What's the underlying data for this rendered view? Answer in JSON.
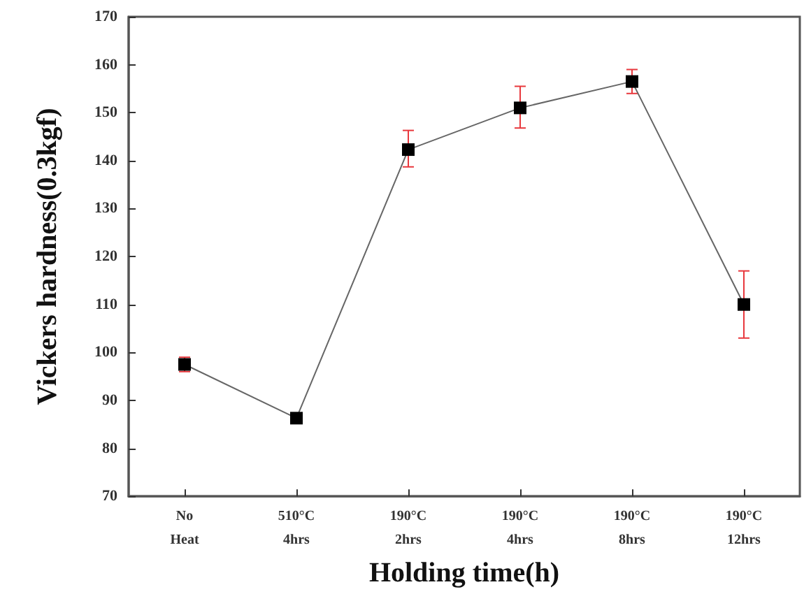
{
  "chart_data": {
    "type": "line",
    "xlabel": "Holding time(h)",
    "ylabel": "Vickers hardness(0.3kgf)",
    "categories": [
      "No\nHeat",
      "510°C\n4hrs",
      "190°C\n2hrs",
      "190°C\n4hrs",
      "190°C\n8hrs",
      "190°C\n12hrs"
    ],
    "series": [
      {
        "color": "#000000",
        "values": [
          97.5,
          86.3,
          142.3,
          151,
          156.5,
          110
        ],
        "errors": [
          1.5,
          null,
          [
            138.7,
            146.3
          ],
          [
            146.8,
            155.5
          ],
          [
            154,
            159
          ],
          [
            103,
            117
          ]
        ]
      }
    ],
    "ylim": [
      70,
      170
    ],
    "yticks": [
      70,
      80,
      90,
      100,
      110,
      120,
      130,
      140,
      150,
      160,
      170
    ],
    "marker": "square",
    "line_style": "solid",
    "grid": false
  }
}
